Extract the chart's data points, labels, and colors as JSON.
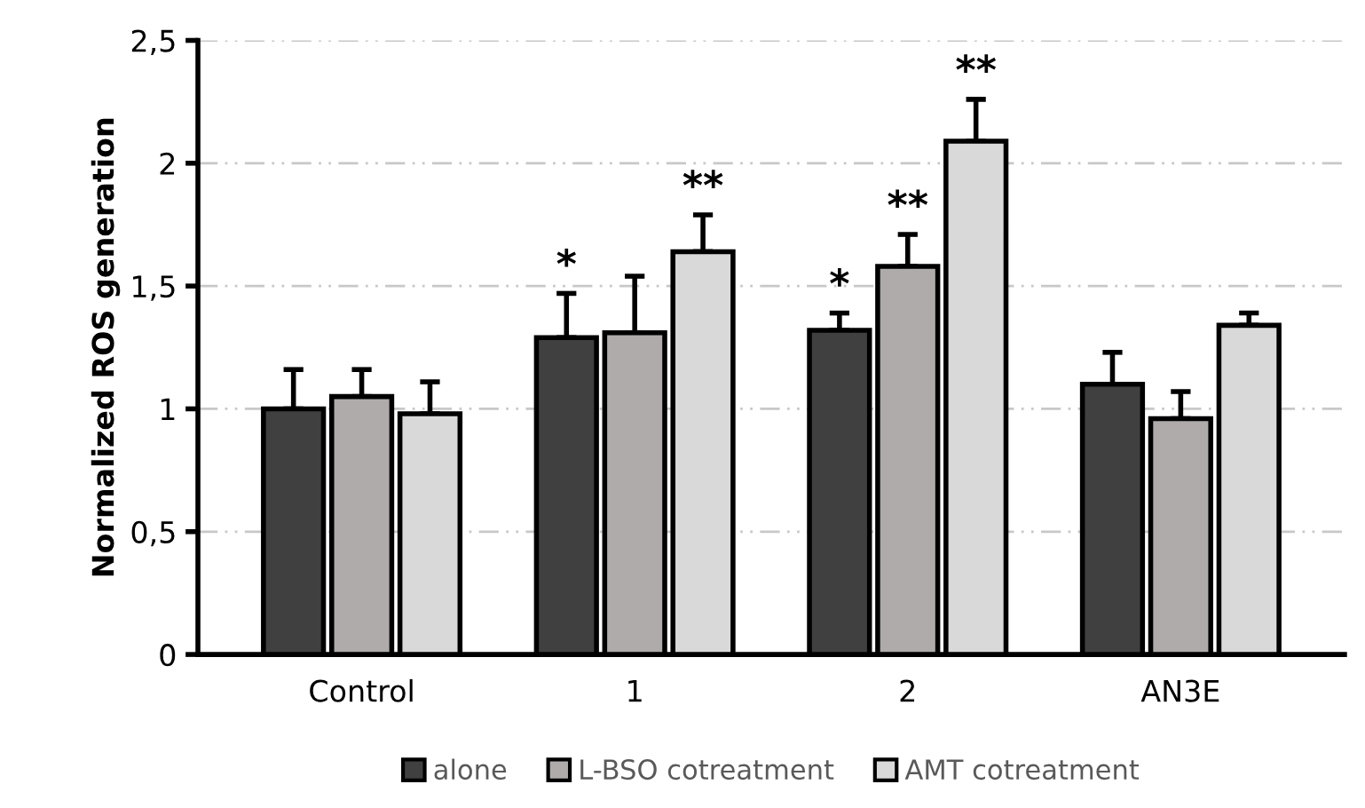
{
  "chart_data": {
    "type": "bar",
    "ylabel": "Normalized ROS generation",
    "categories": [
      "Control",
      "1",
      "2",
      "AN3E"
    ],
    "series": [
      {
        "name": "alone",
        "color": "#404040",
        "values": [
          1.0,
          1.29,
          1.32,
          1.1
        ],
        "errors": [
          [
            1.0,
            1.16
          ],
          [
            1.29,
            1.47
          ],
          [
            1.32,
            1.39
          ],
          [
            1.1,
            1.23
          ]
        ],
        "value_labels": [
          null,
          "*",
          "*",
          null
        ]
      },
      {
        "name": "L-BSO cotreatment",
        "color": "#afabab",
        "values": [
          1.05,
          1.31,
          1.58,
          0.96
        ],
        "errors": [
          [
            1.05,
            1.16
          ],
          [
            1.31,
            1.54
          ],
          [
            1.58,
            1.71
          ],
          [
            0.96,
            1.07
          ]
        ],
        "value_labels": [
          null,
          null,
          "**",
          null
        ]
      },
      {
        "name": "AMT cotreatment",
        "color": "#d9d9d9",
        "values": [
          0.98,
          1.64,
          2.09,
          1.34
        ],
        "errors": [
          [
            0.98,
            1.11
          ],
          [
            1.64,
            1.79
          ],
          [
            2.09,
            2.26
          ],
          [
            1.34,
            1.39
          ]
        ],
        "value_labels": [
          null,
          "**",
          "**",
          null
        ]
      }
    ],
    "ylim": [
      0,
      2.5
    ],
    "yticks": [
      0,
      {
        "value": 0.5,
        "label": "0,5"
      },
      1,
      {
        "value": 1.5,
        "label": "1,5"
      },
      2,
      {
        "value": 2.5,
        "label": "2,5"
      }
    ],
    "grid": "y",
    "legend": "bottom"
  }
}
